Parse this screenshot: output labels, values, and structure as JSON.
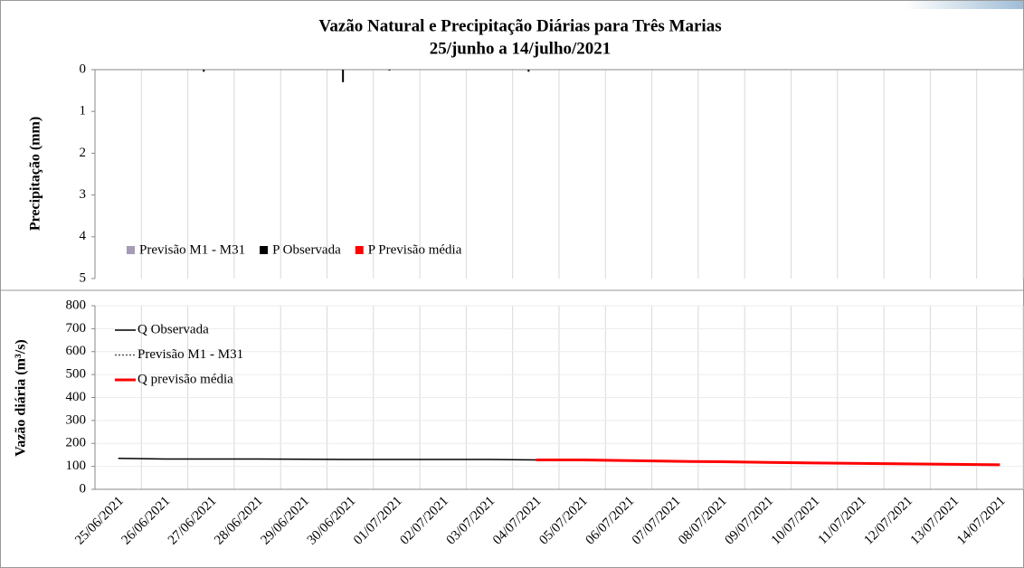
{
  "chart_data": [
    {
      "type": "bar",
      "title": "Vazão Natural e Precipitação Diárias para Três Marias",
      "subtitle": "25/junho a 14/julho/2021",
      "y_label": "Precipitação (mm)",
      "ylim": [
        0,
        5
      ],
      "yticks": [
        0,
        1,
        2,
        3,
        4,
        5
      ],
      "y_inverted": true,
      "grid": true,
      "series": [
        {
          "name": "Previsão M1 - M31",
          "color": "#a79bb5",
          "values": [
            null,
            null,
            null,
            null,
            null,
            null,
            null,
            null,
            null,
            null,
            0,
            0,
            0,
            0,
            0,
            0,
            0,
            0,
            0,
            0
          ]
        },
        {
          "name": "P Observada",
          "color": "#000000",
          "values": [
            0,
            0,
            0.05,
            0,
            0,
            0.3,
            0.02,
            0,
            0,
            0.05,
            null,
            null,
            null,
            null,
            null,
            null,
            null,
            null,
            null,
            null
          ]
        },
        {
          "name": "P Previsão média",
          "color": "#ff0000",
          "values": [
            null,
            null,
            null,
            null,
            null,
            null,
            null,
            null,
            null,
            null,
            0,
            0,
            0,
            0,
            0,
            0,
            0,
            0,
            0,
            0
          ]
        }
      ]
    },
    {
      "type": "line",
      "y_label": "Vazão diária (m³/s)",
      "ylim": [
        0,
        800
      ],
      "yticks": [
        0,
        100,
        200,
        300,
        400,
        500,
        600,
        700,
        800
      ],
      "grid": true,
      "categories": [
        "25/06/2021",
        "26/06/2021",
        "27/06/2021",
        "28/06/2021",
        "29/06/2021",
        "30/06/2021",
        "01/07/2021",
        "02/07/2021",
        "03/07/2021",
        "04/07/2021",
        "05/07/2021",
        "06/07/2021",
        "07/07/2021",
        "08/07/2021",
        "09/07/2021",
        "10/07/2021",
        "11/07/2021",
        "12/07/2021",
        "13/07/2021",
        "14/07/2021"
      ],
      "series": [
        {
          "name": "Q Observada",
          "color": "#000000",
          "dash": "solid",
          "values": [
            135,
            132,
            132,
            132,
            131,
            130,
            130,
            130,
            130,
            128,
            null,
            null,
            null,
            null,
            null,
            null,
            null,
            null,
            null,
            null
          ]
        },
        {
          "name": "Previsão M1 - M31",
          "color": "#555555",
          "dash": "dotted",
          "values": [
            null,
            null,
            null,
            null,
            null,
            null,
            null,
            null,
            null,
            null,
            null,
            null,
            null,
            null,
            null,
            null,
            null,
            null,
            null,
            null
          ]
        },
        {
          "name": "Q previsão média",
          "color": "#ff0000",
          "dash": "solid",
          "values": [
            null,
            null,
            null,
            null,
            null,
            null,
            null,
            null,
            null,
            128,
            128,
            125,
            122,
            120,
            117,
            115,
            113,
            111,
            109,
            107
          ]
        }
      ]
    }
  ]
}
